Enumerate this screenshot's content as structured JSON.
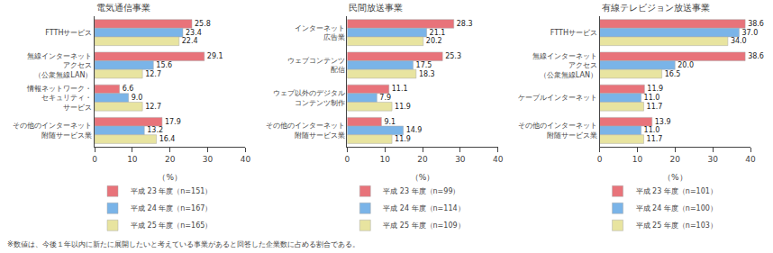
{
  "chart_data": [
    {
      "type": "bar",
      "orientation": "horizontal",
      "title": "電気通信事業",
      "categories": [
        "FTTHサービス",
        "無線インターネット\nアクセス\n（公衆無線LAN）",
        "情報ネットワーク・\nセキュリティ・\nサービス",
        "その他のインターネット\n附随サービス業"
      ],
      "series": [
        {
          "name": "平成 23 年度（n=151）",
          "color": "#e8737a",
          "values": [
            25.8,
            29.1,
            6.6,
            17.9
          ]
        },
        {
          "name": "平成 24 年度（n=167）",
          "color": "#7ab4e8",
          "values": [
            23.4,
            15.6,
            9.0,
            13.2
          ],
          "value_labels": [
            "23.4",
            "15.6",
            "9.0",
            "13.2"
          ]
        },
        {
          "name": "平成 25 年度（n=165）",
          "color": "#e8e4a0",
          "values": [
            22.4,
            12.7,
            12.7,
            16.4
          ]
        }
      ],
      "xlim": [
        0,
        40
      ],
      "xticks": [
        0,
        10,
        20,
        30,
        40
      ],
      "xlabel": "（%）",
      "data_labels": true,
      "grid": false,
      "legend": "below",
      "annotations": [
        "※数値は、今後１年以内に新たに展開したいと考えている事業があると回答した企業数に占める割合である。"
      ]
    },
    {
      "type": "bar",
      "orientation": "horizontal",
      "title": "民間放送事業",
      "categories": [
        "インターネット\n広告業",
        "ウェブコンテンツ\n配信",
        "ウェブ以外のデジタル\nコンテンツ制作",
        "その他のインターネット\n附随サービス業"
      ],
      "series": [
        {
          "name": "平成 23 年度（n=99）",
          "color": "#e8737a",
          "values": [
            28.3,
            25.3,
            11.1,
            9.1
          ]
        },
        {
          "name": "平成 24 年度（n=114）",
          "color": "#7ab4e8",
          "values": [
            21.1,
            17.5,
            7.9,
            14.9
          ]
        },
        {
          "name": "平成 25 年度（n=109）",
          "color": "#e8e4a0",
          "values": [
            20.2,
            18.3,
            11.9,
            11.9
          ]
        }
      ],
      "xlim": [
        0,
        40
      ],
      "xticks": [
        0,
        10,
        20,
        30,
        40
      ],
      "xlabel": "（%）",
      "data_labels": true,
      "grid": false,
      "legend": "below"
    },
    {
      "type": "bar",
      "orientation": "horizontal",
      "title": "有線テレビジョン放送事業",
      "categories": [
        "FTTHサービス",
        "無線インターネット\nアクセス\n（公衆無線LAN）",
        "ケーブルインターネット",
        "その他のインターネット\n附随サービス業"
      ],
      "series": [
        {
          "name": "平成 23 年度（n=101）",
          "color": "#e8737a",
          "values": [
            38.6,
            38.6,
            11.9,
            13.9
          ]
        },
        {
          "name": "平成 24 年度（n=100）",
          "color": "#7ab4e8",
          "values": [
            37.0,
            20.0,
            11.0,
            11.0
          ],
          "value_labels": [
            "37.0",
            "20.0",
            "11.0",
            "11.0"
          ]
        },
        {
          "name": "平成 25 年度（n=103）",
          "color": "#e8e4a0",
          "values": [
            34.0,
            16.5,
            11.7,
            11.7
          ],
          "value_labels": [
            "34.0",
            "16.5",
            "11.7",
            "11.7"
          ]
        }
      ],
      "xlim": [
        0,
        40
      ],
      "xticks": [
        0,
        10,
        20,
        30,
        40
      ],
      "xlabel": "（%）",
      "data_labels": true,
      "grid": false,
      "legend": "below"
    }
  ]
}
